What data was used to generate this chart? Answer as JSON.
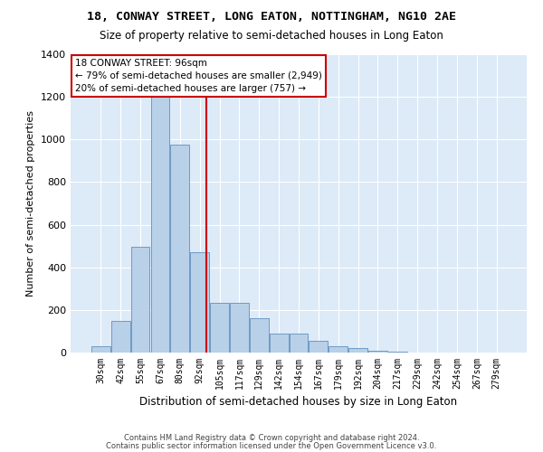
{
  "title": "18, CONWAY STREET, LONG EATON, NOTTINGHAM, NG10 2AE",
  "subtitle": "Size of property relative to semi-detached houses in Long Eaton",
  "xlabel": "Distribution of semi-detached houses by size in Long Eaton",
  "ylabel": "Number of semi-detached properties",
  "bar_color": "#b8d0e8",
  "bar_edge_color": "#6090c0",
  "background_color": "#ddeaf7",
  "grid_color": "#ffffff",
  "categories": [
    "30sqm",
    "42sqm",
    "55sqm",
    "67sqm",
    "80sqm",
    "92sqm",
    "105sqm",
    "117sqm",
    "129sqm",
    "142sqm",
    "154sqm",
    "167sqm",
    "179sqm",
    "192sqm",
    "204sqm",
    "217sqm",
    "229sqm",
    "242sqm",
    "254sqm",
    "267sqm",
    "279sqm"
  ],
  "values": [
    28,
    150,
    498,
    1228,
    975,
    473,
    232,
    232,
    163,
    88,
    88,
    55,
    30,
    22,
    10,
    6,
    0,
    0,
    0,
    0,
    0
  ],
  "property_line_x": 5.33,
  "property_line_color": "#cc0000",
  "annotation_text": "18 CONWAY STREET: 96sqm\n← 79% of semi-detached houses are smaller (2,949)\n20% of semi-detached houses are larger (757) →",
  "annotation_box_color": "#ffffff",
  "annotation_box_edge": "#cc0000",
  "ylim": [
    0,
    1400
  ],
  "yticks": [
    0,
    200,
    400,
    600,
    800,
    1000,
    1200,
    1400
  ],
  "footer1": "Contains HM Land Registry data © Crown copyright and database right 2024.",
  "footer2": "Contains public sector information licensed under the Open Government Licence v3.0."
}
